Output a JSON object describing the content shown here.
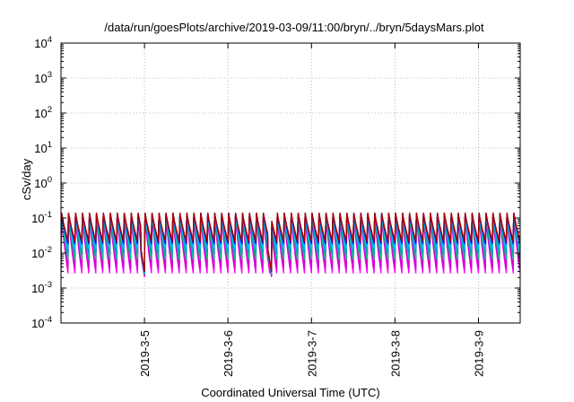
{
  "chart_data": {
    "type": "line",
    "title": "/data/run/goesPlots/archive/2019-03-09/11:00/bryn/../bryn/5daysMars.plot",
    "xlabel": "Coordinated Universal Time (UTC)",
    "ylabel": "cSv/day",
    "y_scale": "log",
    "ylim": [
      0.0001,
      10000
    ],
    "y_ticks": [
      {
        "value": 0.0001,
        "base": "10",
        "exp": "-4"
      },
      {
        "value": 0.001,
        "base": "10",
        "exp": "-3"
      },
      {
        "value": 0.01,
        "base": "10",
        "exp": "-2"
      },
      {
        "value": 0.1,
        "base": "10",
        "exp": "-1"
      },
      {
        "value": 1,
        "base": "10",
        "exp": "0"
      },
      {
        "value": 10,
        "base": "10",
        "exp": "1"
      },
      {
        "value": 100,
        "base": "10",
        "exp": "2"
      },
      {
        "value": 1000,
        "base": "10",
        "exp": "3"
      },
      {
        "value": 10000,
        "base": "10",
        "exp": "4"
      }
    ],
    "xlim": [
      "2019-03-04 00:00",
      "2019-03-09 12:00"
    ],
    "x_ticks": [
      {
        "value": "2019-03-05 00:00",
        "label": "2019-3-5"
      },
      {
        "value": "2019-03-06 00:00",
        "label": "2019-3-6"
      },
      {
        "value": "2019-03-07 00:00",
        "label": "2019-3-7"
      },
      {
        "value": "2019-03-08 00:00",
        "label": "2019-3-8"
      },
      {
        "value": "2019-03-09 00:00",
        "label": "2019-3-9"
      }
    ],
    "grid": true,
    "pattern": {
      "cycle_hours": 2,
      "peak_value": 0.15,
      "trough_value": 0.02,
      "gaps": [
        {
          "from": "2019-03-04 23:00",
          "to": "2019-03-05 00:00",
          "floor": 0.003
        },
        {
          "from": "2019-03-06 11:30",
          "to": "2019-03-06 12:30",
          "floor": 0.003
        }
      ]
    },
    "series": [
      {
        "color": "#ff00ff",
        "offset": -1.0
      },
      {
        "color": "#d000d0",
        "offset": -0.85
      },
      {
        "color": "#00c080",
        "offset": -0.55
      },
      {
        "color": "#00a0c0",
        "offset": -0.35
      },
      {
        "color": "#00c0ff",
        "offset": -0.2
      },
      {
        "color": "#0050ff",
        "offset": -0.05
      },
      {
        "color": "#0000b0",
        "offset": 0.0
      },
      {
        "color": "#b00000",
        "offset": 0.05
      }
    ]
  }
}
